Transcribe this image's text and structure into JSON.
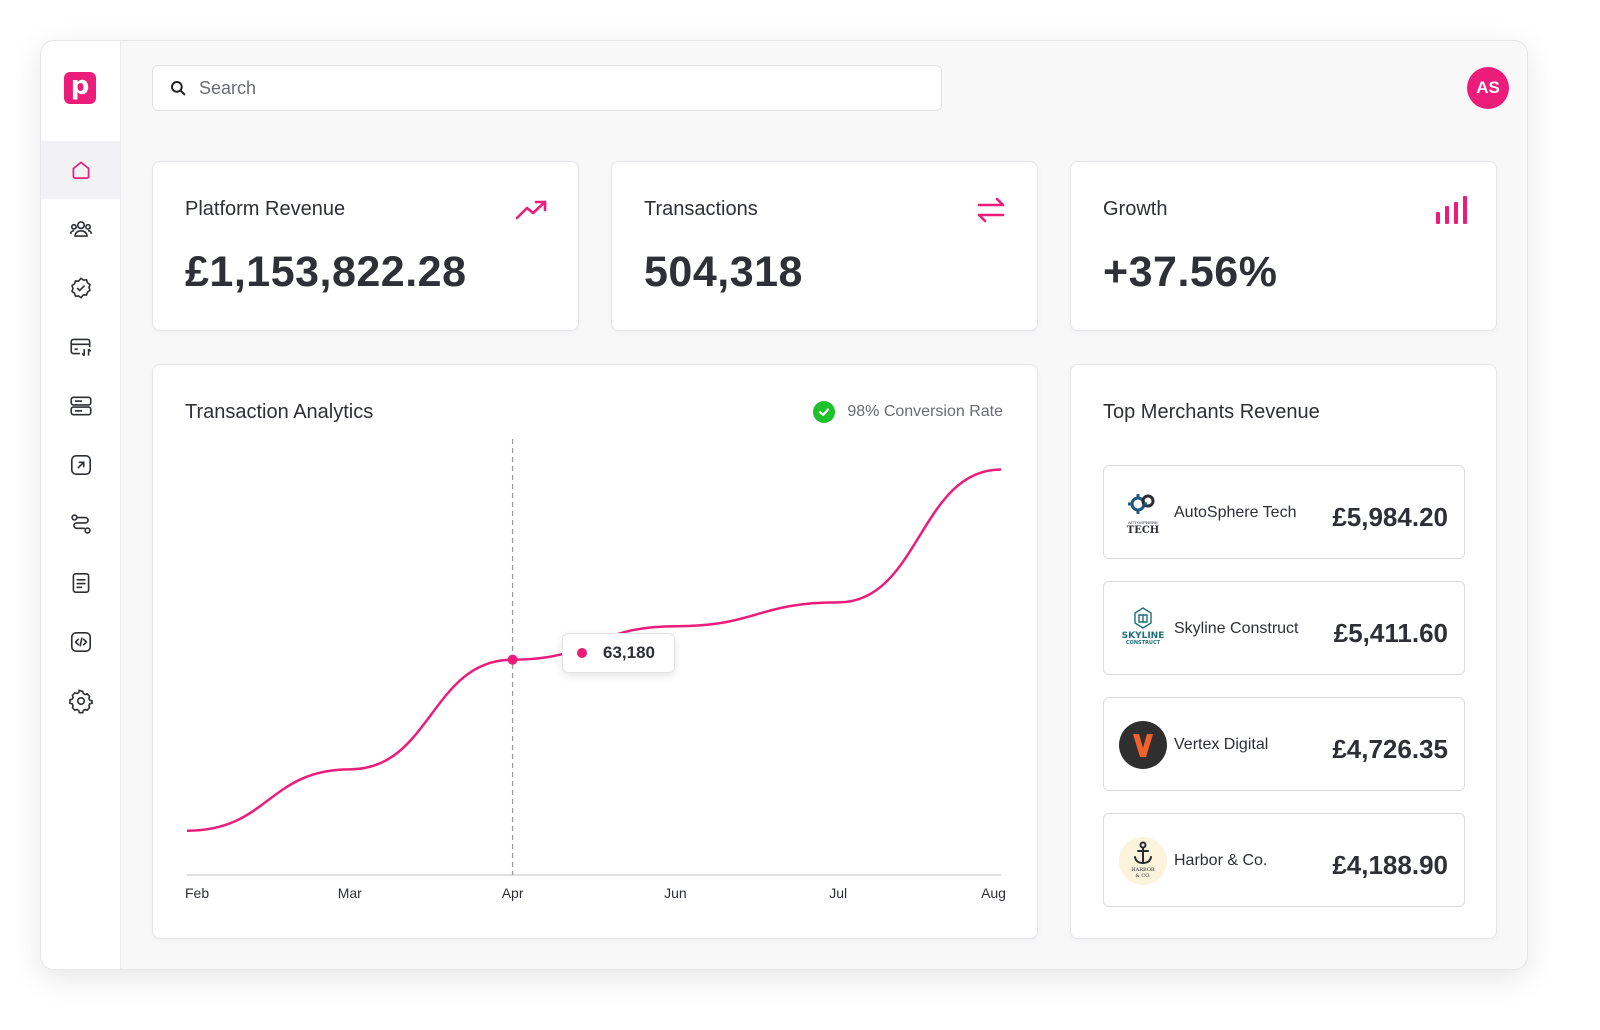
{
  "brand": {
    "logo_letter": "p",
    "accent": "#ec1c7b"
  },
  "search": {
    "placeholder": "Search",
    "value": ""
  },
  "user": {
    "initials": "AS"
  },
  "sidebar": {
    "items": [
      {
        "icon": "home-icon",
        "active": true
      },
      {
        "icon": "users-icon",
        "active": false
      },
      {
        "icon": "badge-check-icon",
        "active": false
      },
      {
        "icon": "card-transfer-icon",
        "active": false
      },
      {
        "icon": "server-icon",
        "active": false
      },
      {
        "icon": "arrow-up-right-square-icon",
        "active": false
      },
      {
        "icon": "route-icon",
        "active": false
      },
      {
        "icon": "document-icon",
        "active": false
      },
      {
        "icon": "code-icon",
        "active": false
      },
      {
        "icon": "settings-gear-icon",
        "active": false
      }
    ]
  },
  "stats": [
    {
      "title": "Platform Revenue",
      "value": "£1,153,822.28",
      "icon": "trending-up-icon"
    },
    {
      "title": "Transactions",
      "value": "504,318",
      "icon": "arrows-exchange-icon"
    },
    {
      "title": "Growth",
      "value": "+37.56%",
      "icon": "bar-chart-icon"
    }
  ],
  "analytics": {
    "title": "Transaction Analytics",
    "conversion": "98% Conversion Rate",
    "tooltip_value": "63,180"
  },
  "chart_data": {
    "type": "line",
    "categories": [
      "Feb",
      "Mar",
      "Apr",
      "Jun",
      "Jul",
      "Aug"
    ],
    "series": [
      {
        "values": [
          13000,
          31000,
          63180,
          73000,
          80000,
          119000
        ]
      }
    ],
    "highlight": {
      "category": "Apr",
      "value": 63180
    },
    "ylim": [
      0,
      125000
    ],
    "grid": false,
    "color": "#ec1c7b"
  },
  "merchants": {
    "title": "Top Merchants Revenue",
    "items": [
      {
        "name": "AutoSphere Tech",
        "amount": "£5,984.20",
        "logo": "autosphere-logo",
        "logo_text": "AUTOSPHERE TECH"
      },
      {
        "name": "Skyline Construct",
        "amount": "£5,411.60",
        "logo": "skyline-logo",
        "logo_text": "SKYLINE CONSTRUCT"
      },
      {
        "name": "Vertex Digital",
        "amount": "£4,726.35",
        "logo": "vertex-logo",
        "logo_text": "V"
      },
      {
        "name": "Harbor & Co.",
        "amount": "£4,188.90",
        "logo": "harbor-logo",
        "logo_text": "HARBOR & CO."
      }
    ]
  }
}
